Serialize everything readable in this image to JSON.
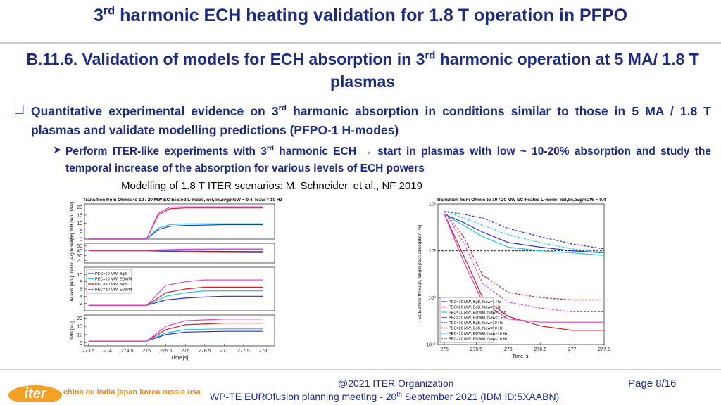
{
  "header": {
    "title": [
      "3",
      "rd",
      " harmonic ECH heating validation for 1.8 T operation in PFPO"
    ]
  },
  "heading": [
    "B.11.6. Validation of models for ECH absorption in 3",
    "rd",
    " harmonic operation at 5 MA/ 1.8 T plasmas"
  ],
  "bullets": [
    [
      "Quantitative experimental evidence on 3",
      "rd",
      " harmonic absorption in conditions similar to those in 5 MA / 1.8 T plasmas and validate modelling predictions (PFPO-1 H-modes)"
    ],
    [
      "Perform ITER-like experiments with 3",
      "rd",
      " harmonic ECH → start in plasmas with low ~ 10-20% absorption and study the temporal increase of the absorption for various levels of ECH powers"
    ]
  ],
  "caption": "Modelling of 1.8 T ITER scenarios: M. Schneider, et al., NF 2019",
  "footer": {
    "org": "@2021 ITER Organization",
    "page": "Page 8/16",
    "meeting": [
      "WP-TE EUROfusion planning meeting -  20",
      "th",
      " September 2021 (IDM ID:5XAABN)"
    ],
    "logo": "iter",
    "tagline": "china eu india japan korea russia usa"
  },
  "chart_data": [
    {
      "type": "line",
      "title": "Transition from Ohmic to 10 / 20 MW EC-heated L-mode, nel,lin,avg/nGW ~ 0.4, fsaw = 10 Hz",
      "ylabel": "P ECRH dep. [MW]",
      "x": [
        273.5,
        275,
        275.3,
        275.6,
        276,
        277,
        278
      ],
      "xlim": [
        273.4,
        278.3
      ],
      "ylim": [
        0,
        22
      ],
      "yticks": [
        0,
        5,
        10,
        15,
        20
      ],
      "series": [
        {
          "color": "#2b2bd6",
          "values": [
            0,
            0,
            6,
            8,
            8.5,
            9,
            9
          ]
        },
        {
          "color": "#22c8e0",
          "values": [
            0,
            0,
            7,
            9,
            9.5,
            9.6,
            9.6
          ]
        },
        {
          "color": "#d42020",
          "values": [
            0,
            0,
            15,
            19,
            19.5,
            19.5,
            19.5
          ]
        },
        {
          "color": "#e040d0",
          "values": [
            0,
            0,
            16,
            20,
            20.2,
            20.2,
            20.2
          ]
        }
      ]
    },
    {
      "type": "line",
      "ylabel": "nel,lin,avg/nGW [%]",
      "x": [
        273.5,
        275,
        275.5,
        276,
        277,
        278
      ],
      "xlim": [
        273.4,
        278.3
      ],
      "ylim": [
        15,
        55
      ],
      "yticks": [
        20,
        30,
        40,
        50
      ],
      "series": [
        {
          "color": "#2b2bd6",
          "values": [
            40,
            40,
            39.5,
            39,
            38.5,
            38
          ]
        },
        {
          "color": "#22c8e0",
          "values": [
            41,
            41,
            41.5,
            42,
            42,
            42
          ]
        },
        {
          "color": "#d42020",
          "values": [
            40,
            40,
            38.5,
            37.5,
            36.5,
            36
          ]
        },
        {
          "color": "#e040d0",
          "values": [
            41,
            41,
            42,
            43,
            43.5,
            43.5
          ]
        }
      ]
    },
    {
      "type": "line",
      "ylabel": "Te,axis [keV]",
      "x": [
        273.5,
        275,
        275.5,
        276,
        276.5,
        277,
        277.5,
        278
      ],
      "xlim": [
        273.4,
        278.3
      ],
      "ylim": [
        0,
        12
      ],
      "yticks": [
        2,
        4,
        6,
        8,
        10
      ],
      "legend": "upper left",
      "series": [
        {
          "name": "PEC=10 MW, BgB",
          "color": "#2b2bd6",
          "values": [
            1.5,
            1.5,
            3,
            3.5,
            3.8,
            4,
            4,
            4
          ]
        },
        {
          "name": "PEC=10 MW, EDWM",
          "color": "#22c8e0",
          "values": [
            1.5,
            1.5,
            4,
            5,
            5.5,
            5.5,
            5.5,
            5.5
          ]
        },
        {
          "name": "PEC=20 MW, BgB",
          "color": "#d42020",
          "values": [
            1.5,
            1.5,
            5,
            6,
            6.5,
            6.5,
            6.5,
            6.5
          ]
        },
        {
          "name": "PEC=20 MW, EDWM",
          "color": "#e040d0",
          "values": [
            1.5,
            1.5,
            7,
            8,
            8.5,
            8.5,
            8.5,
            8.5
          ]
        }
      ]
    },
    {
      "type": "line",
      "ylabel": "Wth [MJ]",
      "xlabel": "Time [s]",
      "x": [
        273.5,
        275,
        275.5,
        276,
        277,
        278
      ],
      "xlim": [
        273.4,
        278.3
      ],
      "ylim": [
        3,
        22
      ],
      "yticks": [
        5,
        10,
        15,
        20
      ],
      "xticks": [
        273.5,
        274,
        274.5,
        275,
        275.5,
        276,
        276.5,
        277,
        277.5,
        278
      ],
      "series": [
        {
          "color": "#2b2bd6",
          "values": [
            6,
            6,
            10,
            11.5,
            12,
            12
          ]
        },
        {
          "color": "#22c8e0",
          "values": [
            6,
            6,
            11,
            13,
            13.5,
            13.5
          ]
        },
        {
          "color": "#d42020",
          "values": [
            6,
            6,
            13,
            16,
            17,
            17
          ]
        },
        {
          "color": "#e040d0",
          "values": [
            6,
            6,
            15,
            18.5,
            19.5,
            19.5
          ]
        }
      ]
    },
    {
      "type": "line",
      "log_y": true,
      "title": "Transition from Ohmic to 10 / 20 MW EC-heated L-mode, nel,lin,avg/nGW ~ 0.4",
      "ylabel": "P ECE shine-through, single pass absorption [%]",
      "xlabel": "Time [s]",
      "x": [
        275,
        275.3,
        275.6,
        276,
        276.5,
        277,
        277.5
      ],
      "xlim": [
        274.9,
        277.5
      ],
      "ylim": [
        0.1,
        100
      ],
      "yticks": [
        {
          "value": 0.1,
          "label": "10⁻¹"
        },
        {
          "value": 1,
          "label": "10⁰"
        },
        {
          "value": 10,
          "label": "10¹"
        },
        {
          "value": 100,
          "label": "10²"
        }
      ],
      "xticks": [
        275,
        275.5,
        276,
        276.5,
        277,
        277.5
      ],
      "reference_level": 10,
      "legend": "lower left",
      "series": [
        {
          "name": "PEC=10 MW, BgB, fsaw=1 Hz",
          "color": "#2b2bd6",
          "values": [
            60,
            40,
            25,
            15,
            12,
            10,
            9
          ]
        },
        {
          "name": "PEC=20 MW, BgB, fsaw=1 Hz",
          "color": "#d42020",
          "values": [
            60,
            8,
            1,
            0.4,
            0.25,
            0.2,
            0.2
          ]
        },
        {
          "name": "PEC=10 MW, EDWM, fsaw=1 Hz",
          "color": "#22c8e0",
          "values": [
            60,
            35,
            20,
            12,
            10,
            9,
            8
          ]
        },
        {
          "name": "PEC=20 MW, EDWM, fsaw=1 Hz",
          "color": "#e040d0",
          "values": [
            60,
            6,
            0.8,
            0.35,
            0.3,
            0.3,
            0.3
          ]
        },
        {
          "name": "PEC=10 MW, BgB, fsaw=10 Hz",
          "color": "#2b2bd6",
          "dash": true,
          "values": [
            70,
            60,
            50,
            30,
            20,
            14,
            11
          ]
        },
        {
          "name": "PEC=20 MW, BgB, fsaw=10 Hz",
          "color": "#d42020",
          "dash": true,
          "values": [
            70,
            20,
            3,
            1.3,
            1,
            0.9,
            0.9
          ]
        },
        {
          "name": "PEC=10 MW, EDWM, fsaw=10 Hz",
          "color": "#22c8e0",
          "dash": true,
          "values": [
            70,
            50,
            35,
            22,
            15,
            11,
            9
          ]
        },
        {
          "name": "PEC=20 MW, EDWM, fsaw=10 Hz",
          "color": "#e040d0",
          "dash": true,
          "values": [
            70,
            15,
            2,
            0.8,
            0.6,
            0.5,
            0.5
          ]
        }
      ]
    }
  ]
}
